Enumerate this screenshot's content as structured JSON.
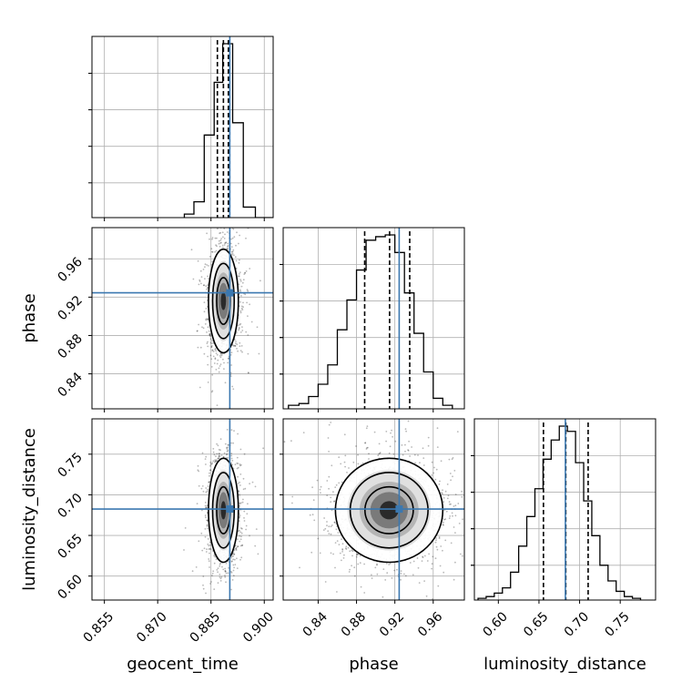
{
  "chart_data": {
    "type": "corner",
    "parameters": [
      "geocent_time",
      "phase",
      "luminosity_distance"
    ],
    "colors": {
      "truth": "#3b78b0",
      "hist": "#000000",
      "grid": "#b0b0b0",
      "scatter": "#000000"
    },
    "truths": {
      "geocent_time": 0.8903,
      "phase": 0.9245,
      "luminosity_distance": 0.6825
    },
    "quantiles": {
      "geocent_time": [
        0.8868,
        0.8885,
        0.8899
      ],
      "phase": [
        0.8885,
        0.9145,
        0.9355
      ],
      "luminosity_distance": [
        0.6555,
        0.683,
        0.7105
      ]
    },
    "ranges": {
      "geocent_time": [
        0.8515,
        0.9025
      ],
      "phase": [
        0.8035,
        0.9925
      ],
      "luminosity_distance": [
        0.5705,
        0.7935
      ]
    },
    "ticks": {
      "geocent_time": [
        "0.855",
        "0.870",
        "0.885",
        "0.900"
      ],
      "phase": [
        "0.84",
        "0.88",
        "0.92",
        "0.96"
      ],
      "luminosity_distance": [
        "0.60",
        "0.65",
        "0.70",
        "0.75"
      ]
    },
    "histograms": {
      "geocent_time": {
        "edges": [
          0.8775,
          0.8802,
          0.8831,
          0.8859,
          0.8883,
          0.8911,
          0.8941,
          0.8975,
          0.9025
        ],
        "counts": [
          0.02,
          0.09,
          0.47,
          0.77,
          0.99,
          0.54,
          0.06,
          0.0
        ]
      },
      "phase": {
        "edges": [
          0.809,
          0.82,
          0.83,
          0.84,
          0.85,
          0.86,
          0.87,
          0.88,
          0.89,
          0.9,
          0.91,
          0.92,
          0.93,
          0.94,
          0.95,
          0.96,
          0.97,
          0.98
        ],
        "counts": [
          0.02,
          0.03,
          0.07,
          0.14,
          0.25,
          0.45,
          0.62,
          0.79,
          0.96,
          0.98,
          0.99,
          0.89,
          0.66,
          0.43,
          0.21,
          0.06,
          0.02
        ]
      },
      "luminosity_distance": {
        "edges": [
          0.575,
          0.585,
          0.595,
          0.605,
          0.615,
          0.625,
          0.635,
          0.645,
          0.655,
          0.665,
          0.675,
          0.685,
          0.695,
          0.705,
          0.715,
          0.725,
          0.735,
          0.745,
          0.755,
          0.765,
          0.775
        ],
        "counts": [
          0.01,
          0.02,
          0.04,
          0.07,
          0.16,
          0.31,
          0.48,
          0.64,
          0.81,
          0.92,
          1.0,
          0.97,
          0.79,
          0.57,
          0.37,
          0.2,
          0.11,
          0.05,
          0.02,
          0.01
        ]
      }
    },
    "pairs": [
      {
        "x": "geocent_time",
        "y": "phase",
        "center": [
          0.8885,
          0.916
        ],
        "sigma": [
          0.0021,
          0.027
        ]
      },
      {
        "x": "geocent_time",
        "y": "luminosity_distance",
        "center": [
          0.8885,
          0.681
        ],
        "sigma": [
          0.0021,
          0.032
        ]
      },
      {
        "x": "phase",
        "y": "luminosity_distance",
        "center": [
          0.914,
          0.681
        ],
        "sigma": [
          0.028,
          0.032
        ]
      }
    ]
  }
}
